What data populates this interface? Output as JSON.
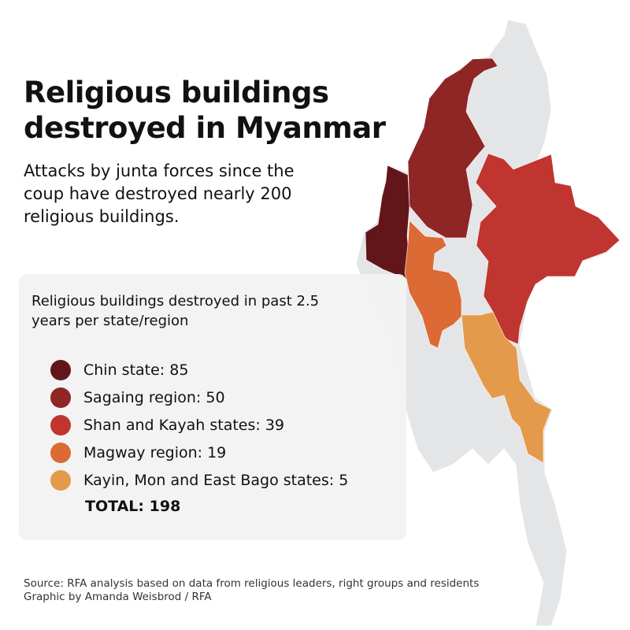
{
  "header": {
    "title_line1": "Religious buildings",
    "title_line2": "destroyed in Myanmar",
    "subtitle": "Attacks by junta forces since the coup have destroyed nearly 200 religious buildings."
  },
  "legend": {
    "title": "Religious buildings destroyed in past 2.5 years per state/region",
    "items": [
      {
        "label": "Chin state: 85",
        "region": "Chin state",
        "value": 85,
        "color": "#62161a"
      },
      {
        "label": "Sagaing region: 50",
        "region": "Sagaing region",
        "value": 50,
        "color": "#8e2626"
      },
      {
        "label": "Shan and Kayah states: 39",
        "region": "Shan and Kayah states",
        "value": 39,
        "color": "#c03530"
      },
      {
        "label": "Magway region: 19",
        "region": "Magway region",
        "value": 19,
        "color": "#db6a35"
      },
      {
        "label": "Kayin, Mon and East Bago states: 5",
        "region": "Kayin, Mon and East Bago states",
        "value": 5,
        "color": "#e39a4b"
      }
    ],
    "total": "TOTAL: 198"
  },
  "map": {
    "base_color": "#e4e5e7"
  },
  "footer": {
    "source": "Source: RFA analysis based on data from religious leaders, right groups and residents",
    "credit": "Graphic by Amanda Weisbrod / RFA"
  }
}
